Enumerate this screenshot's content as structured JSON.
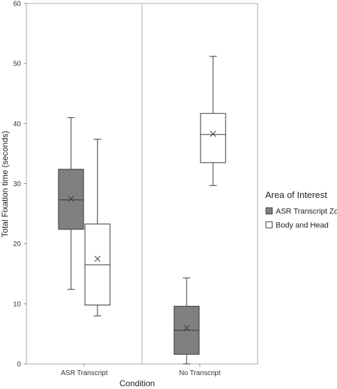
{
  "chart_data": {
    "type": "boxplot",
    "xlabel": "Condition",
    "ylabel": "Total Fixation time (seconds)",
    "ylim": [
      0,
      60
    ],
    "yticks": [
      0,
      10,
      20,
      30,
      40,
      50,
      60
    ],
    "categories": [
      "ASR Transcript",
      "No Transcript"
    ],
    "legend": {
      "title": "Area of Interest",
      "placement": "right",
      "entries": [
        "ASR Transcript Zone",
        "Body and Head"
      ]
    },
    "series": [
      {
        "name": "ASR Transcript Zone",
        "color": "#808080",
        "boxes": [
          {
            "category": "ASR Transcript",
            "min": 12.4,
            "q1": 22.4,
            "median": 27.3,
            "q3": 32.4,
            "max": 41.0,
            "mean": 27.5
          },
          {
            "category": "No Transcript",
            "min": 0.0,
            "q1": 1.6,
            "median": 5.6,
            "q3": 9.6,
            "max": 14.3,
            "mean": 6.0
          }
        ]
      },
      {
        "name": "Body and Head",
        "color": "#ffffff",
        "boxes": [
          {
            "category": "ASR Transcript",
            "min": 8.0,
            "q1": 9.8,
            "median": 16.5,
            "q3": 23.3,
            "max": 37.4,
            "mean": 17.5
          },
          {
            "category": "No Transcript",
            "min": 29.7,
            "q1": 33.5,
            "median": 38.2,
            "q3": 41.7,
            "max": 51.2,
            "mean": 38.3
          }
        ]
      }
    ],
    "mean_marker": "x",
    "category_divider": true
  }
}
